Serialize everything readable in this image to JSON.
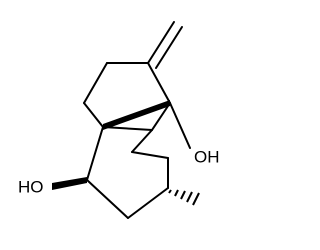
{
  "labels": {
    "hydroxyl_right": "OH",
    "hydroxyl_left": "HO"
  }
}
